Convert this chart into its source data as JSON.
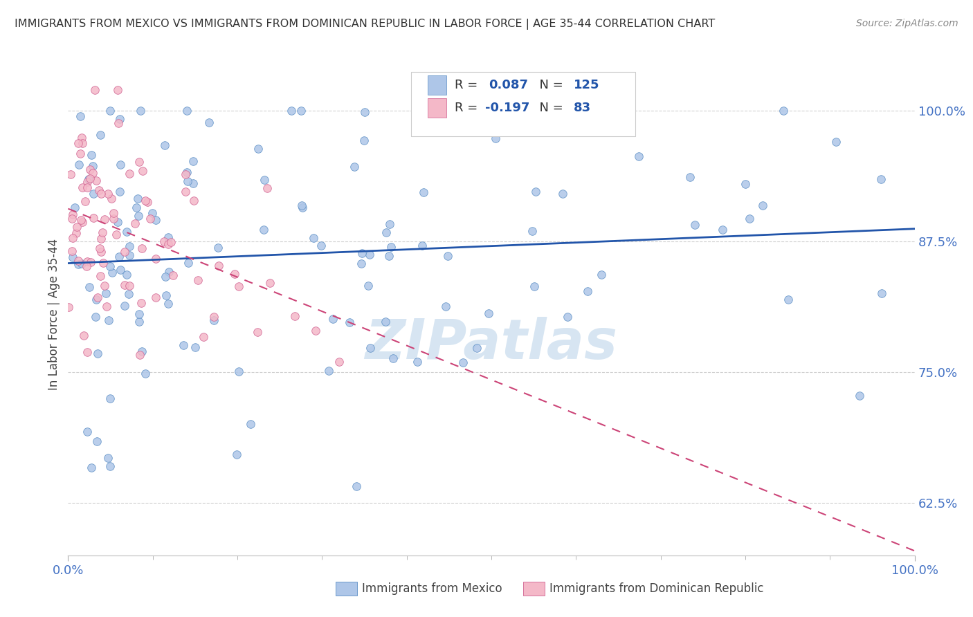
{
  "title": "IMMIGRANTS FROM MEXICO VS IMMIGRANTS FROM DOMINICAN REPUBLIC IN LABOR FORCE | AGE 35-44 CORRELATION CHART",
  "source": "Source: ZipAtlas.com",
  "ylabel": "In Labor Force | Age 35-44",
  "legend_label1": "Immigrants from Mexico",
  "legend_label2": "Immigrants from Dominican Republic",
  "R1": 0.087,
  "N1": 125,
  "R2": -0.197,
  "N2": 83,
  "color_blue_fill": "#aec6e8",
  "color_blue_edge": "#5b8ec4",
  "color_pink_fill": "#f4b8c8",
  "color_pink_edge": "#d06090",
  "color_trend_blue": "#2255aa",
  "color_trend_pink": "#cc4477",
  "ytick_labels": [
    "62.5%",
    "75.0%",
    "87.5%",
    "100.0%"
  ],
  "ytick_values": [
    0.625,
    0.75,
    0.875,
    1.0
  ],
  "xlim": [
    0.0,
    1.0
  ],
  "ylim": [
    0.575,
    1.035
  ],
  "watermark": "ZIPatlas",
  "background_color": "#ffffff",
  "grid_color": "#d0d0d0",
  "title_color": "#333333",
  "source_color": "#888888",
  "ytick_color": "#4472c4",
  "xtick_color": "#4472c4"
}
